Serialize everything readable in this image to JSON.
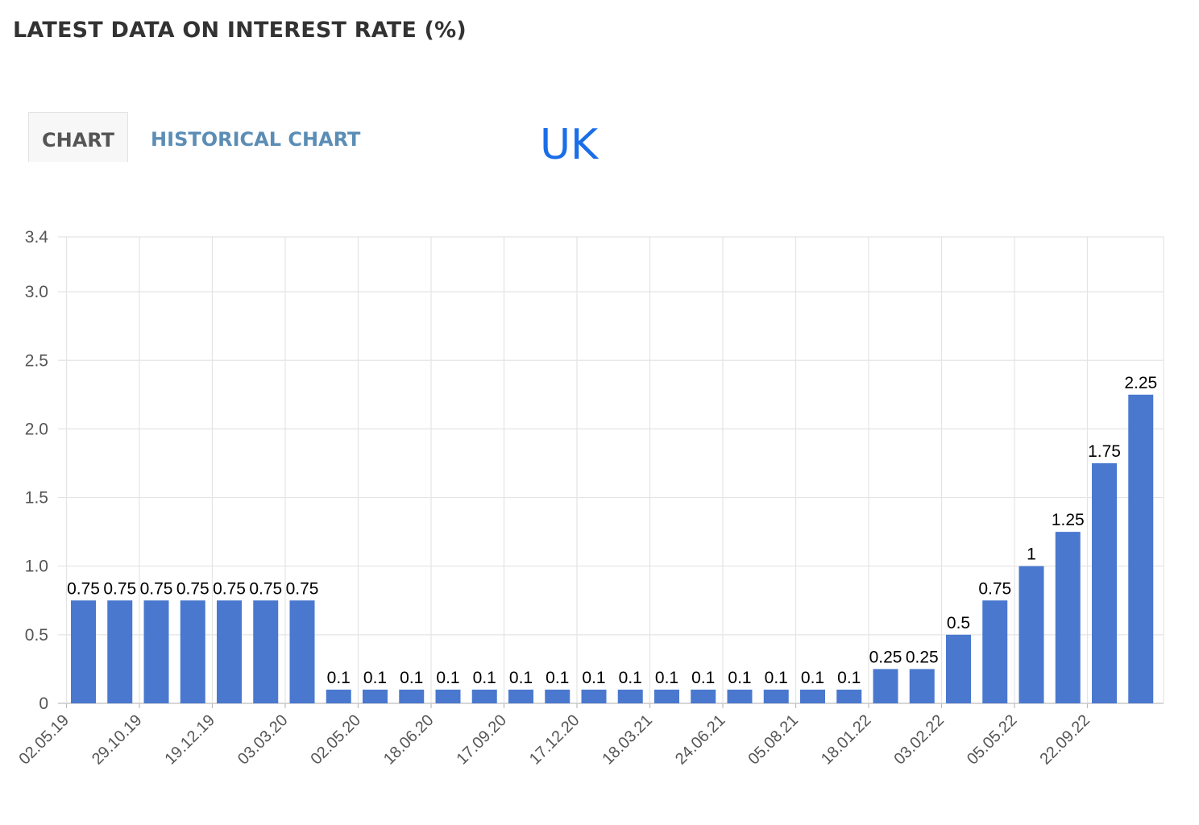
{
  "page": {
    "title": "LATEST DATA ON INTEREST RATE (%)"
  },
  "tabs": [
    {
      "label": "CHART",
      "active": true
    },
    {
      "label": "HISTORICAL CHART",
      "active": false
    }
  ],
  "region_label": "UK",
  "colors": {
    "bar": "#4a78cf",
    "active_tab_text": "#555555",
    "inactive_tab_text": "#5b8db5",
    "region_label": "#1a6ee8"
  },
  "chart_data": {
    "type": "bar",
    "title": "",
    "xlabel": "",
    "ylabel": "",
    "ylim": [
      0,
      3.4
    ],
    "yticks": [
      "0",
      "0.5",
      "1.0",
      "1.5",
      "2.0",
      "2.5",
      "3.0",
      "3.4"
    ],
    "ytick_values": [
      0,
      0.5,
      1.0,
      1.5,
      2.0,
      2.5,
      3.0,
      3.4
    ],
    "grid": true,
    "values": [
      0.75,
      0.75,
      0.75,
      0.75,
      0.75,
      0.75,
      0.75,
      0.1,
      0.1,
      0.1,
      0.1,
      0.1,
      0.1,
      0.1,
      0.1,
      0.1,
      0.1,
      0.1,
      0.1,
      0.1,
      0.1,
      0.1,
      0.25,
      0.25,
      0.5,
      0.75,
      1,
      1.25,
      1.75,
      2.25
    ],
    "labels": [
      "0.75",
      "0.75",
      "0.75",
      "0.75",
      "0.75",
      "0.75",
      "0.75",
      "0.1",
      "0.1",
      "0.1",
      "0.1",
      "0.1",
      "0.1",
      "0.1",
      "0.1",
      "0.1",
      "0.1",
      "0.1",
      "0.1",
      "0.1",
      "0.1",
      "0.1",
      "0.25",
      "0.25",
      "0.5",
      "0.75",
      "1",
      "1.25",
      "1.75",
      "2.25"
    ],
    "x_tick_labels": [
      "02.05.19",
      "29.10.19",
      "19.12.19",
      "03.03.20",
      "02.05.20",
      "18.06.20",
      "17.09.20",
      "17.12.20",
      "18.03.21",
      "24.06.21",
      "05.08.21",
      "18.01.22",
      "03.02.22",
      "05.05.22",
      "22.09.22"
    ]
  }
}
